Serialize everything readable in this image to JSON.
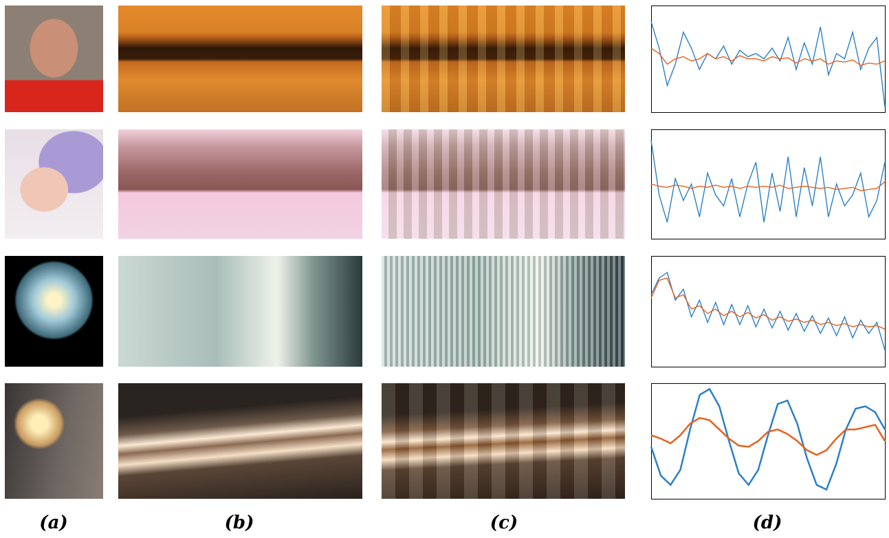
{
  "figure": {
    "labels": [
      "(a)",
      "(b)",
      "(c)",
      "(d)"
    ]
  },
  "chart_data": [
    {
      "type": "line",
      "ylim": [
        0,
        100
      ],
      "series": [
        {
          "color": "#2a7fc8",
          "values": [
            85,
            60,
            25,
            45,
            75,
            60,
            40,
            55,
            50,
            62,
            45,
            58,
            52,
            55,
            50,
            60,
            48,
            70,
            40,
            65,
            45,
            80,
            35,
            55,
            50,
            75,
            40,
            60,
            70,
            5
          ]
        },
        {
          "color": "#e8601c",
          "values": [
            60,
            55,
            45,
            50,
            52,
            48,
            50,
            55,
            50,
            52,
            48,
            53,
            50,
            50,
            48,
            52,
            50,
            51,
            46,
            50,
            48,
            50,
            45,
            48,
            47,
            49,
            44,
            46,
            45,
            48
          ]
        }
      ]
    },
    {
      "type": "line",
      "ylim": [
        0,
        100
      ],
      "series": [
        {
          "color": "#2a7fc8",
          "values": [
            90,
            40,
            15,
            55,
            35,
            50,
            20,
            60,
            40,
            30,
            55,
            20,
            50,
            70,
            15,
            60,
            25,
            75,
            20,
            65,
            30,
            75,
            20,
            50,
            30,
            40,
            60,
            20,
            35,
            70
          ]
        },
        {
          "color": "#e8601c",
          "values": [
            50,
            48,
            47,
            49,
            48,
            46,
            48,
            47,
            49,
            47,
            48,
            46,
            48,
            47,
            48,
            47,
            49,
            46,
            47,
            48,
            47,
            46,
            47,
            45,
            46,
            47,
            44,
            45,
            46,
            52
          ]
        }
      ]
    },
    {
      "type": "line",
      "ylim": [
        0,
        100
      ],
      "series": [
        {
          "color": "#2a7fc8",
          "values": [
            65,
            80,
            85,
            60,
            70,
            45,
            60,
            40,
            58,
            38,
            56,
            38,
            55,
            36,
            52,
            35,
            50,
            33,
            48,
            32,
            46,
            30,
            44,
            28,
            45,
            26,
            42,
            30,
            40,
            15
          ]
        },
        {
          "color": "#e8601c",
          "values": [
            62,
            78,
            80,
            62,
            65,
            52,
            55,
            48,
            52,
            46,
            50,
            45,
            49,
            44,
            47,
            42,
            45,
            41,
            43,
            40,
            42,
            38,
            40,
            37,
            39,
            36,
            38,
            36,
            37,
            34
          ]
        }
      ]
    },
    {
      "type": "line",
      "ylim": [
        0,
        100
      ],
      "series": [
        {
          "color": "#2a7fc8",
          "values": [
            45,
            20,
            12,
            25,
            60,
            90,
            95,
            80,
            50,
            22,
            12,
            25,
            55,
            82,
            85,
            65,
            35,
            12,
            8,
            30,
            60,
            78,
            80,
            75,
            60
          ]
        },
        {
          "color": "#e8601c",
          "values": [
            55,
            52,
            48,
            55,
            65,
            70,
            68,
            60,
            52,
            46,
            45,
            50,
            58,
            60,
            56,
            50,
            42,
            38,
            42,
            52,
            60,
            60,
            62,
            64,
            50
          ]
        }
      ]
    }
  ]
}
